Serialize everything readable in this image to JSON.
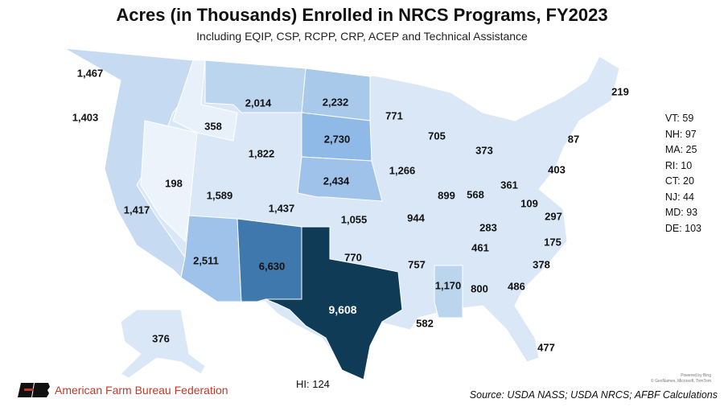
{
  "title": "Acres (in Thousands) Enrolled in NRCS Programs, FY2023",
  "subtitle": "Including EQIP, CSP, RCPP, CRP, ACEP and Technical Assistance",
  "colors": {
    "lightest": "#e4eef9",
    "light": "#d2e3f4",
    "medium": "#bcd5ef",
    "strong": "#9ec2e9",
    "dark": "#3f78ad",
    "darkest": "#0f3b57"
  },
  "states": {
    "WA": "1,467",
    "OR": "1,403",
    "CA": "1,417",
    "NV": "198",
    "ID": "358",
    "MT": "2,014",
    "WY": "1,822",
    "UT": "1,589",
    "AZ": "2,511",
    "CO": "1,437",
    "NM": "6,630",
    "ND": "2,232",
    "SD": "2,730",
    "NE": "2,434",
    "KS": "1,055",
    "OK": "770",
    "TX": "9,608",
    "MN": "771",
    "IA": "1,266",
    "MO": "944",
    "AR": "757",
    "LA": "582",
    "WI": "705",
    "IL": "899",
    "MI": "373",
    "IN": "568",
    "OH": "361",
    "KY": "283",
    "TN": "461",
    "MS": "1,170",
    "AL": "800",
    "GA": "486",
    "FL": "477",
    "SC": "378",
    "NC": "175",
    "VA": "297",
    "WV": "109",
    "PA": "403",
    "NY": "87",
    "ME": "219",
    "AK": "376"
  },
  "small_states": [
    "VT: 59",
    "NH: 97",
    "MA: 25",
    "RI: 10",
    "CT: 20",
    "NJ: 44",
    "MD: 93",
    "DE: 103"
  ],
  "hawaii": "HI: 124",
  "organization": "American Farm Bureau Federation",
  "source": "Source: USDA NASS; USDA NRCS; AFBF Calculations",
  "attribution": [
    "Powered by Bing",
    "© GeoNames, Microsoft, TomTom"
  ]
}
